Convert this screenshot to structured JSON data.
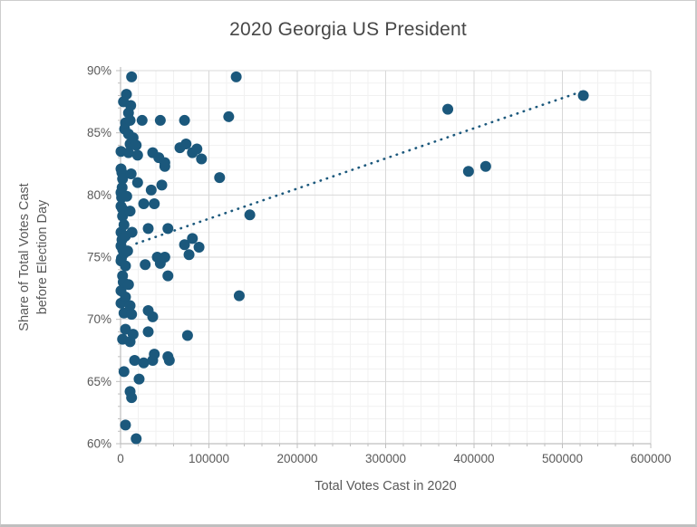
{
  "chart_data": {
    "type": "scatter",
    "title": "2020 Georgia US President",
    "xlabel": "Total Votes Cast in 2020",
    "ylabel_lines": [
      "Share of Total Votes Cast",
      "before Election Day"
    ],
    "xlim": [
      0,
      600000
    ],
    "ylim": [
      60,
      90
    ],
    "x_major_step": 100000,
    "x_minor_step": 20000,
    "y_major_step": 5,
    "y_minor_step": 1,
    "x_ticks": [
      "0",
      "100000",
      "200000",
      "300000",
      "400000",
      "500000",
      "600000"
    ],
    "y_ticks": [
      "60%",
      "65%",
      "70%",
      "75%",
      "80%",
      "85%",
      "90%"
    ],
    "grid": "major+minor",
    "legend": "none",
    "marker": "circle",
    "marker_radius_px": 6,
    "points": [
      [
        500,
        83.5
      ],
      [
        500,
        82.1
      ],
      [
        500,
        80.2
      ],
      [
        500,
        79.1
      ],
      [
        500,
        77.0
      ],
      [
        500,
        75.9
      ],
      [
        500,
        74.7
      ],
      [
        500,
        72.3
      ],
      [
        500,
        71.3
      ],
      [
        1000,
        74.9
      ],
      [
        1200,
        79.8
      ],
      [
        1500,
        81.8
      ],
      [
        1600,
        76.4
      ],
      [
        1800,
        80.6
      ],
      [
        2000,
        78.9
      ],
      [
        2300,
        81.3
      ],
      [
        2300,
        78.3
      ],
      [
        2300,
        73.5
      ],
      [
        2300,
        68.4
      ],
      [
        2500,
        75.6
      ],
      [
        3000,
        73.0
      ],
      [
        3300,
        87.5
      ],
      [
        3900,
        77.6
      ],
      [
        3900,
        75.3
      ],
      [
        3900,
        70.5
      ],
      [
        3900,
        65.8
      ],
      [
        4600,
        85.3
      ],
      [
        5600,
        85.8
      ],
      [
        5600,
        76.7
      ],
      [
        5600,
        74.3
      ],
      [
        5600,
        71.8
      ],
      [
        5600,
        69.2
      ],
      [
        5600,
        61.5
      ],
      [
        6700,
        88.1
      ],
      [
        7000,
        79.9
      ],
      [
        8000,
        75.5
      ],
      [
        9000,
        86.6
      ],
      [
        9000,
        84.9
      ],
      [
        9000,
        83.4
      ],
      [
        9000,
        72.8
      ],
      [
        10800,
        86.0
      ],
      [
        10800,
        84.1
      ],
      [
        10800,
        78.7
      ],
      [
        10800,
        71.1
      ],
      [
        10800,
        68.2
      ],
      [
        10800,
        64.2
      ],
      [
        11500,
        87.2
      ],
      [
        12000,
        81.7
      ],
      [
        12500,
        89.5
      ],
      [
        12500,
        70.4
      ],
      [
        12500,
        63.7
      ],
      [
        13000,
        77.0
      ],
      [
        14200,
        84.6
      ],
      [
        14200,
        68.8
      ],
      [
        15900,
        66.7
      ],
      [
        17700,
        84.0
      ],
      [
        17700,
        60.4
      ],
      [
        19300,
        83.2
      ],
      [
        19300,
        81.0
      ],
      [
        21000,
        65.2
      ],
      [
        24400,
        86.0
      ],
      [
        26200,
        79.3
      ],
      [
        26200,
        66.5
      ],
      [
        27900,
        74.4
      ],
      [
        31300,
        77.3
      ],
      [
        31300,
        70.7
      ],
      [
        31300,
        69.0
      ],
      [
        34700,
        80.4
      ],
      [
        36400,
        83.4
      ],
      [
        36400,
        70.2
      ],
      [
        36400,
        66.7
      ],
      [
        38200,
        79.3
      ],
      [
        38200,
        67.2
      ],
      [
        41600,
        75.0
      ],
      [
        43300,
        83.0
      ],
      [
        45000,
        86.0
      ],
      [
        45000,
        74.5
      ],
      [
        46700,
        80.8
      ],
      [
        50100,
        82.6
      ],
      [
        50100,
        82.3
      ],
      [
        50100,
        75.0
      ],
      [
        53600,
        77.3
      ],
      [
        53600,
        73.5
      ],
      [
        53600,
        67.0
      ],
      [
        55200,
        66.7
      ],
      [
        67200,
        83.8
      ],
      [
        72400,
        86.0
      ],
      [
        72400,
        76.0
      ],
      [
        74100,
        84.1
      ],
      [
        75800,
        68.7
      ],
      [
        77500,
        75.2
      ],
      [
        81300,
        83.4
      ],
      [
        81300,
        76.5
      ],
      [
        86400,
        83.7
      ],
      [
        88800,
        75.8
      ],
      [
        91600,
        82.9
      ],
      [
        112100,
        81.4
      ],
      [
        122400,
        86.3
      ],
      [
        130900,
        89.5
      ],
      [
        134300,
        71.9
      ],
      [
        146300,
        78.4
      ],
      [
        370300,
        86.9
      ],
      [
        393700,
        81.9
      ],
      [
        413200,
        82.3
      ],
      [
        523700,
        88.0
      ]
    ],
    "trendline": {
      "style": "dotted",
      "x1": 18000,
      "y1": 76.1,
      "x2": 521000,
      "y2": 88.3
    },
    "colors": {
      "point": "#1b587c",
      "trend": "#1b587c",
      "grid_major": "#d8d8d8",
      "grid_minor": "#f1f1f1",
      "axis": "#bfbfbf",
      "text": "#595959",
      "title": "#474747"
    }
  }
}
